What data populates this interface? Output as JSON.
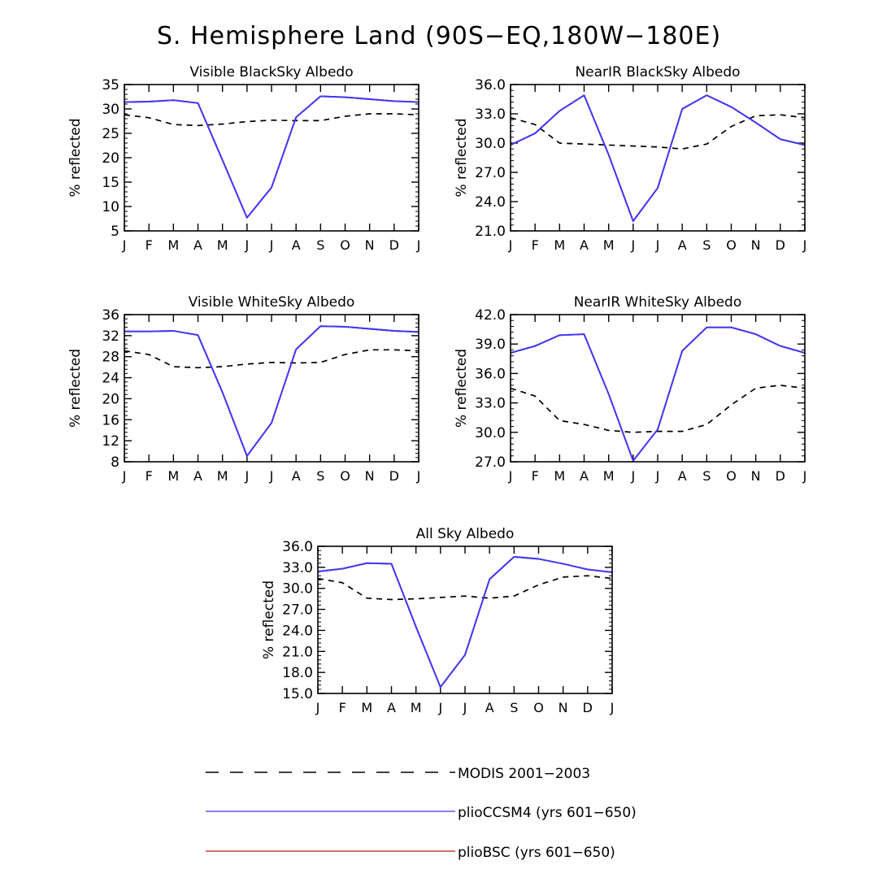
{
  "title": "S. Hemisphere Land (90S−EQ,180W−180E)",
  "months": [
    "J",
    "F",
    "M",
    "A",
    "M",
    "J",
    "J",
    "A",
    "S",
    "O",
    "N",
    "D",
    "J"
  ],
  "legend": [
    {
      "label": "MODIS 2001−2003",
      "color": "#000000",
      "style": "dashed"
    },
    {
      "label": "plioCCSM4 (yrs 601−650)",
      "color": "#3a3aff",
      "style": "solid"
    },
    {
      "label": "plioBSC (yrs 601−650)",
      "color": "#c01818",
      "style": "solid"
    }
  ],
  "chart_data": [
    {
      "type": "line",
      "title": "Visible BlackSky Albedo",
      "ylabel": "% reflected",
      "ylim": [
        5,
        35
      ],
      "yticks": [
        "5",
        "10",
        "15",
        "20",
        "25",
        "30",
        "35"
      ],
      "series": [
        {
          "name": "MODIS 2001−2003",
          "values": [
            28.8,
            28.2,
            26.8,
            26.6,
            26.9,
            27.4,
            27.7,
            27.6,
            27.6,
            28.5,
            29.0,
            29.0,
            28.8
          ]
        },
        {
          "name": "plioCCSM4 (yrs 601−650)",
          "values": [
            31.4,
            31.5,
            31.8,
            31.2,
            19.5,
            7.7,
            13.9,
            28.3,
            32.6,
            32.4,
            32.0,
            31.6,
            31.4
          ]
        },
        {
          "name": "plioBSC (yrs 601−650)",
          "values": [
            31.4,
            31.5,
            31.8,
            31.2,
            19.5,
            7.7,
            13.9,
            28.3,
            32.6,
            32.4,
            32.0,
            31.6,
            31.4
          ]
        }
      ]
    },
    {
      "type": "line",
      "title": "NearIR BlackSky Albedo",
      "ylabel": "% reflected",
      "ylim": [
        21,
        36
      ],
      "yticks": [
        "21.0",
        "24.0",
        "27.0",
        "30.0",
        "33.0",
        "36.0"
      ],
      "series": [
        {
          "name": "MODIS 2001−2003",
          "values": [
            32.6,
            31.9,
            30.0,
            29.9,
            29.8,
            29.7,
            29.6,
            29.4,
            29.9,
            31.7,
            32.8,
            32.9,
            32.6
          ]
        },
        {
          "name": "plioCCSM4 (yrs 601−650)",
          "values": [
            29.8,
            31.0,
            33.3,
            34.9,
            28.8,
            22.0,
            25.4,
            33.5,
            34.9,
            33.7,
            32.1,
            30.4,
            29.8
          ]
        },
        {
          "name": "plioBSC (yrs 601−650)",
          "values": [
            29.8,
            31.0,
            33.3,
            34.9,
            28.8,
            22.0,
            25.4,
            33.5,
            34.9,
            33.7,
            32.1,
            30.4,
            29.8
          ]
        }
      ]
    },
    {
      "type": "line",
      "title": "Visible WhiteSky Albedo",
      "ylabel": "% reflected",
      "ylim": [
        8,
        36
      ],
      "yticks": [
        "8",
        "12",
        "16",
        "20",
        "24",
        "28",
        "32",
        "36"
      ],
      "series": [
        {
          "name": "MODIS 2001−2003",
          "values": [
            29.1,
            28.4,
            26.1,
            25.9,
            26.1,
            26.6,
            26.9,
            26.8,
            26.9,
            28.4,
            29.3,
            29.3,
            29.1
          ]
        },
        {
          "name": "plioCCSM4 (yrs 601−650)",
          "values": [
            32.8,
            32.8,
            32.9,
            32.1,
            21.2,
            9.1,
            15.4,
            29.4,
            33.8,
            33.7,
            33.3,
            32.9,
            32.7
          ]
        },
        {
          "name": "plioBSC (yrs 601−650)",
          "values": [
            32.8,
            32.8,
            32.9,
            32.1,
            21.2,
            9.1,
            15.4,
            29.4,
            33.8,
            33.7,
            33.3,
            32.9,
            32.7
          ]
        }
      ]
    },
    {
      "type": "line",
      "title": "NearIR WhiteSky Albedo",
      "ylabel": "% reflected",
      "ylim": [
        27,
        42
      ],
      "yticks": [
        "27.0",
        "30.0",
        "33.0",
        "36.0",
        "39.0",
        "42.0"
      ],
      "series": [
        {
          "name": "MODIS 2001−2003",
          "values": [
            34.5,
            33.7,
            31.2,
            30.8,
            30.2,
            30.0,
            30.1,
            30.1,
            30.8,
            32.8,
            34.5,
            34.8,
            34.5
          ]
        },
        {
          "name": "plioCCSM4 (yrs 601−650)",
          "values": [
            38.1,
            38.8,
            39.9,
            40.0,
            33.9,
            27.1,
            30.3,
            38.3,
            40.7,
            40.7,
            40.0,
            38.8,
            38.1
          ]
        },
        {
          "name": "plioBSC (yrs 601−650)",
          "values": [
            38.1,
            38.8,
            39.9,
            40.0,
            33.9,
            27.1,
            30.3,
            38.3,
            40.7,
            40.7,
            40.0,
            38.8,
            38.1
          ]
        }
      ]
    },
    {
      "type": "line",
      "title": "All Sky Albedo",
      "ylabel": "% reflected",
      "ylim": [
        15,
        36
      ],
      "yticks": [
        "15.0",
        "18.0",
        "21.0",
        "24.0",
        "27.0",
        "30.0",
        "33.0",
        "36.0"
      ],
      "series": [
        {
          "name": "MODIS 2001−2003",
          "values": [
            31.4,
            30.8,
            28.6,
            28.4,
            28.5,
            28.7,
            28.9,
            28.6,
            28.9,
            30.5,
            31.6,
            31.8,
            31.4
          ]
        },
        {
          "name": "plioCCSM4 (yrs 601−650)",
          "values": [
            32.4,
            32.8,
            33.6,
            33.5,
            24.5,
            15.9,
            20.5,
            31.3,
            34.5,
            34.2,
            33.5,
            32.7,
            32.3
          ]
        },
        {
          "name": "plioBSC (yrs 601−650)",
          "values": [
            32.4,
            32.8,
            33.6,
            33.5,
            24.5,
            15.9,
            20.5,
            31.3,
            34.5,
            34.2,
            33.5,
            32.7,
            32.3
          ]
        }
      ]
    }
  ]
}
